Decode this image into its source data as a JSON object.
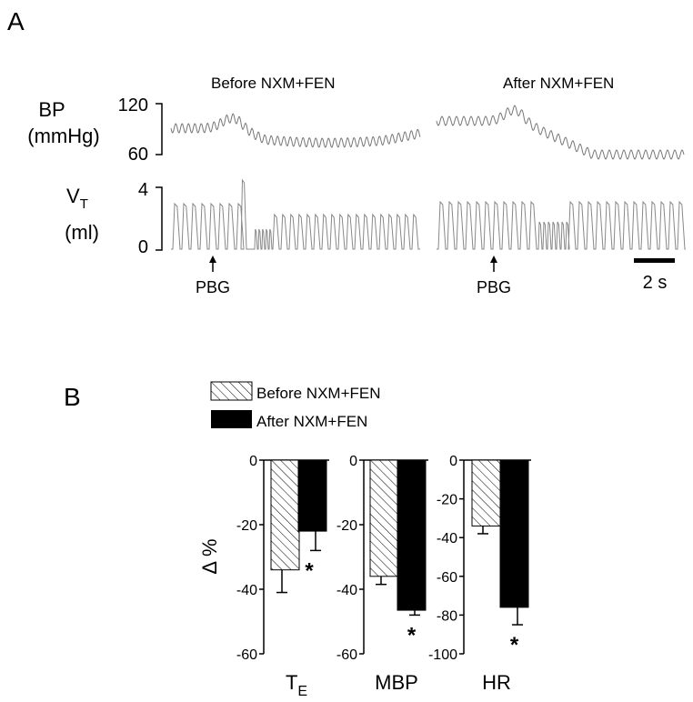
{
  "panel_a": {
    "label": "A",
    "conditions": [
      {
        "title": "Before NXM+FEN",
        "marker": "PBG"
      },
      {
        "title": "After NXM+FEN",
        "marker": "PBG"
      }
    ],
    "bp": {
      "label_line1": "BP",
      "label_line2": "(mmHg)",
      "tick_top": "120",
      "tick_bottom": "60"
    },
    "vt": {
      "label_main": "V",
      "label_sub": "T",
      "label_line2": "(ml)",
      "tick_top": "4",
      "tick_bottom": "0"
    },
    "scale_bar_label": "2 s"
  },
  "panel_b": {
    "label": "B",
    "legend": [
      {
        "name": "Before NXM+FEN",
        "fill": "hatched"
      },
      {
        "name": "After NXM+FEN",
        "fill": "#000000"
      }
    ],
    "ylabel": "Δ %"
  },
  "chart_data": [
    {
      "type": "bar",
      "xlabel": "T",
      "xlabel_sub": "E",
      "ylabel": "Δ %",
      "ylim": [
        -60,
        0
      ],
      "yticks": [
        0,
        -20,
        -40,
        -60
      ],
      "series": [
        {
          "name": "Before NXM+FEN",
          "value": -34,
          "error": 7,
          "significant": false
        },
        {
          "name": "After NXM+FEN",
          "value": -22,
          "error": 6,
          "significant": true
        }
      ]
    },
    {
      "type": "bar",
      "xlabel": "MBP",
      "xlabel_sub": "",
      "ylim": [
        -60,
        0
      ],
      "yticks": [
        0,
        -20,
        -40,
        -60
      ],
      "series": [
        {
          "name": "Before NXM+FEN",
          "value": -36,
          "error": 2.5,
          "significant": false
        },
        {
          "name": "After NXM+FEN",
          "value": -46.5,
          "error": 1.5,
          "significant": true
        }
      ]
    },
    {
      "type": "bar",
      "xlabel": "HR",
      "xlabel_sub": "",
      "ylim": [
        -100,
        0
      ],
      "yticks": [
        0,
        -20,
        -40,
        -60,
        -80,
        -100
      ],
      "series": [
        {
          "name": "Before NXM+FEN",
          "value": -34,
          "error": 4,
          "significant": false
        },
        {
          "name": "After NXM+FEN",
          "value": -76,
          "error": 9,
          "significant": true
        }
      ]
    }
  ]
}
